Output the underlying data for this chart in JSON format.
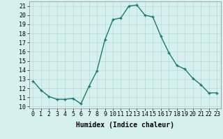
{
  "x": [
    0,
    1,
    2,
    3,
    4,
    5,
    6,
    7,
    8,
    9,
    10,
    11,
    12,
    13,
    14,
    15,
    16,
    17,
    18,
    19,
    20,
    21,
    22,
    23
  ],
  "y": [
    12.8,
    11.8,
    11.1,
    10.8,
    10.8,
    10.9,
    10.3,
    12.2,
    13.9,
    17.3,
    19.5,
    19.7,
    21.0,
    21.1,
    20.0,
    19.8,
    17.7,
    15.9,
    14.5,
    14.1,
    13.1,
    12.4,
    11.5,
    11.5
  ],
  "line_color": "#1a7a6e",
  "marker": "+",
  "marker_size": 3,
  "background_color": "#d6f0ef",
  "grid_color": "#b8d8d6",
  "xlabel": "Humidex (Indice chaleur)",
  "xlim": [
    -0.5,
    23.5
  ],
  "ylim": [
    9.8,
    21.5
  ],
  "yticks": [
    10,
    11,
    12,
    13,
    14,
    15,
    16,
    17,
    18,
    19,
    20,
    21
  ],
  "xticks": [
    0,
    1,
    2,
    3,
    4,
    5,
    6,
    7,
    8,
    9,
    10,
    11,
    12,
    13,
    14,
    15,
    16,
    17,
    18,
    19,
    20,
    21,
    22,
    23
  ],
  "xlabel_fontsize": 7,
  "tick_fontsize": 6,
  "line_width": 1.0
}
